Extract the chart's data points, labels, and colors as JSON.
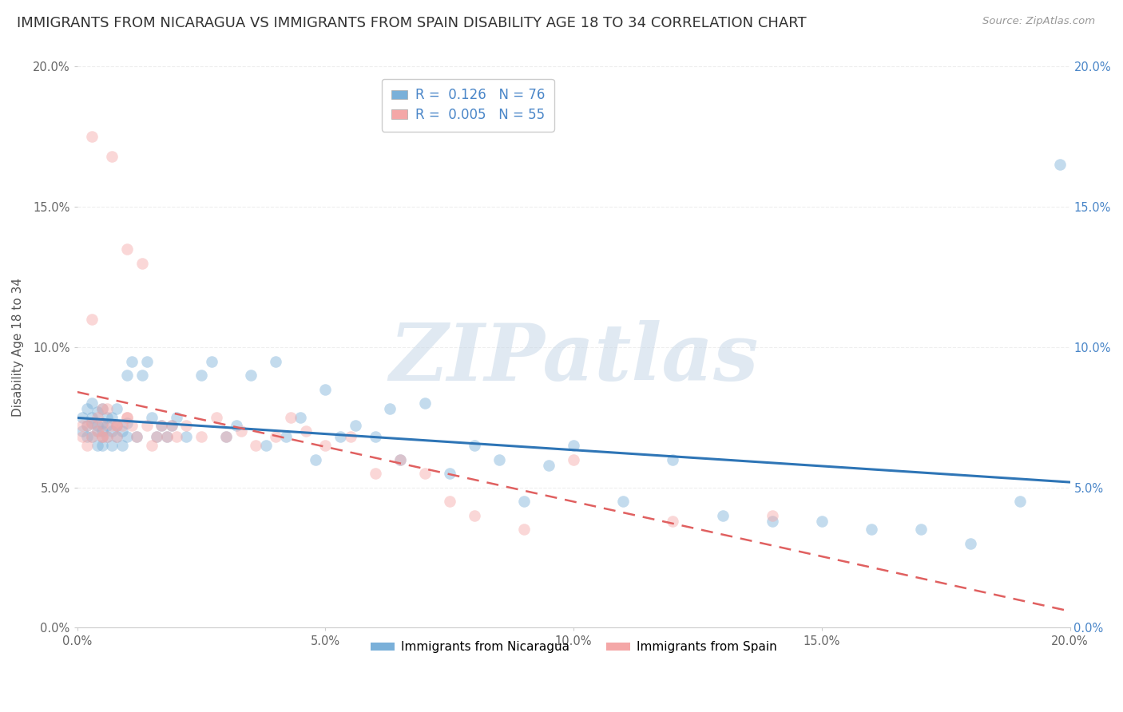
{
  "title": "IMMIGRANTS FROM NICARAGUA VS IMMIGRANTS FROM SPAIN DISABILITY AGE 18 TO 34 CORRELATION CHART",
  "source": "Source: ZipAtlas.com",
  "ylabel": "Disability Age 18 to 34",
  "xlim": [
    0.0,
    0.2
  ],
  "ylim": [
    0.0,
    0.2
  ],
  "xticks": [
    0.0,
    0.05,
    0.1,
    0.15,
    0.2
  ],
  "yticks": [
    0.0,
    0.05,
    0.1,
    0.15,
    0.2
  ],
  "xtick_labels": [
    "0.0%",
    "5.0%",
    "10.0%",
    "15.0%",
    "20.0%"
  ],
  "ytick_labels": [
    "0.0%",
    "5.0%",
    "10.0%",
    "15.0%",
    "20.0%"
  ],
  "nicaragua_color": "#7ab0d9",
  "nicaragua_line_color": "#2e75b6",
  "spain_color": "#f4a7a7",
  "spain_line_color": "#e06060",
  "nicaragua_name": "Immigrants from Nicaragua",
  "nicaragua_R": 0.126,
  "nicaragua_N": 76,
  "spain_name": "Immigrants from Spain",
  "spain_R": 0.005,
  "spain_N": 55,
  "nicaragua_x": [
    0.001,
    0.001,
    0.002,
    0.002,
    0.002,
    0.003,
    0.003,
    0.003,
    0.003,
    0.004,
    0.004,
    0.004,
    0.004,
    0.005,
    0.005,
    0.005,
    0.005,
    0.005,
    0.006,
    0.006,
    0.006,
    0.007,
    0.007,
    0.007,
    0.008,
    0.008,
    0.008,
    0.009,
    0.009,
    0.01,
    0.01,
    0.01,
    0.011,
    0.012,
    0.013,
    0.014,
    0.015,
    0.016,
    0.017,
    0.018,
    0.019,
    0.02,
    0.022,
    0.025,
    0.027,
    0.03,
    0.032,
    0.035,
    0.038,
    0.04,
    0.042,
    0.045,
    0.048,
    0.05,
    0.053,
    0.056,
    0.06,
    0.063,
    0.065,
    0.07,
    0.075,
    0.08,
    0.085,
    0.09,
    0.095,
    0.1,
    0.11,
    0.12,
    0.13,
    0.14,
    0.15,
    0.16,
    0.17,
    0.18,
    0.19,
    0.198
  ],
  "nicaragua_y": [
    0.07,
    0.075,
    0.072,
    0.068,
    0.078,
    0.073,
    0.068,
    0.075,
    0.08,
    0.07,
    0.065,
    0.072,
    0.077,
    0.068,
    0.073,
    0.078,
    0.065,
    0.07,
    0.072,
    0.068,
    0.075,
    0.065,
    0.07,
    0.075,
    0.068,
    0.072,
    0.078,
    0.065,
    0.07,
    0.068,
    0.073,
    0.09,
    0.095,
    0.068,
    0.09,
    0.095,
    0.075,
    0.068,
    0.072,
    0.068,
    0.072,
    0.075,
    0.068,
    0.09,
    0.095,
    0.068,
    0.072,
    0.09,
    0.065,
    0.095,
    0.068,
    0.075,
    0.06,
    0.085,
    0.068,
    0.072,
    0.068,
    0.078,
    0.06,
    0.08,
    0.055,
    0.065,
    0.06,
    0.045,
    0.058,
    0.065,
    0.045,
    0.06,
    0.04,
    0.038,
    0.038,
    0.035,
    0.035,
    0.03,
    0.045,
    0.165
  ],
  "spain_x": [
    0.001,
    0.001,
    0.002,
    0.002,
    0.003,
    0.003,
    0.003,
    0.004,
    0.004,
    0.005,
    0.005,
    0.005,
    0.006,
    0.006,
    0.007,
    0.007,
    0.008,
    0.008,
    0.009,
    0.01,
    0.01,
    0.011,
    0.012,
    0.013,
    0.014,
    0.015,
    0.016,
    0.017,
    0.018,
    0.019,
    0.02,
    0.022,
    0.025,
    0.028,
    0.03,
    0.033,
    0.036,
    0.04,
    0.043,
    0.046,
    0.05,
    0.055,
    0.06,
    0.065,
    0.07,
    0.075,
    0.08,
    0.09,
    0.1,
    0.12,
    0.14,
    0.003,
    0.005,
    0.008,
    0.01
  ],
  "spain_y": [
    0.068,
    0.072,
    0.065,
    0.072,
    0.068,
    0.073,
    0.175,
    0.075,
    0.07,
    0.078,
    0.068,
    0.072,
    0.078,
    0.068,
    0.072,
    0.168,
    0.072,
    0.068,
    0.072,
    0.075,
    0.135,
    0.072,
    0.068,
    0.13,
    0.072,
    0.065,
    0.068,
    0.072,
    0.068,
    0.072,
    0.068,
    0.072,
    0.068,
    0.075,
    0.068,
    0.07,
    0.065,
    0.068,
    0.075,
    0.07,
    0.065,
    0.068,
    0.055,
    0.06,
    0.055,
    0.045,
    0.04,
    0.035,
    0.06,
    0.038,
    0.04,
    0.11,
    0.068,
    0.072,
    0.075
  ],
  "watermark": "ZIPatlas",
  "watermark_color": "#c8d8e8",
  "background_color": "#ffffff",
  "grid_color": "#eeeeee",
  "title_fontsize": 13,
  "axis_label_fontsize": 11,
  "tick_fontsize": 10.5,
  "legend_fontsize": 12,
  "dot_size": 110,
  "dot_alpha": 0.45
}
